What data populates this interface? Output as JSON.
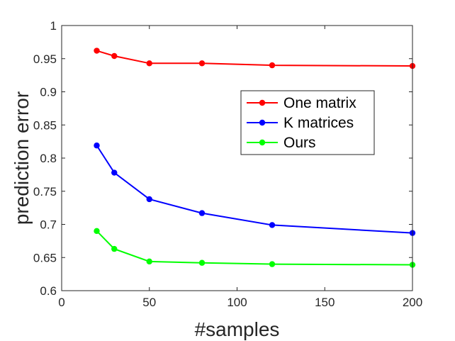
{
  "chart_data": {
    "type": "line",
    "title": "",
    "xlabel": "#samples",
    "ylabel": "prediction error",
    "xlim": [
      0,
      200
    ],
    "ylim": [
      0.6,
      1.0
    ],
    "xticks": [
      0,
      50,
      100,
      150,
      200
    ],
    "xtick_labels": [
      "0",
      "50",
      "100",
      "150",
      "200"
    ],
    "yticks": [
      0.6,
      0.65,
      0.7,
      0.75,
      0.8,
      0.85,
      0.9,
      0.95,
      1.0
    ],
    "ytick_labels": [
      "0.6",
      "0.65",
      "0.7",
      "0.75",
      "0.8",
      "0.85",
      "0.9",
      "0.95",
      "1"
    ],
    "grid": false,
    "legend_position": "center-right",
    "x": [
      20,
      30,
      50,
      80,
      120,
      200
    ],
    "series": [
      {
        "name": "One matrix",
        "color": "#ff0000",
        "values": [
          0.962,
          0.954,
          0.943,
          0.943,
          0.94,
          0.939
        ]
      },
      {
        "name": "K matrices",
        "color": "#0000ff",
        "values": [
          0.819,
          0.778,
          0.738,
          0.717,
          0.699,
          0.687
        ]
      },
      {
        "name": "Ours",
        "color": "#00ff00",
        "values": [
          0.69,
          0.663,
          0.644,
          0.642,
          0.64,
          0.639
        ]
      }
    ]
  }
}
